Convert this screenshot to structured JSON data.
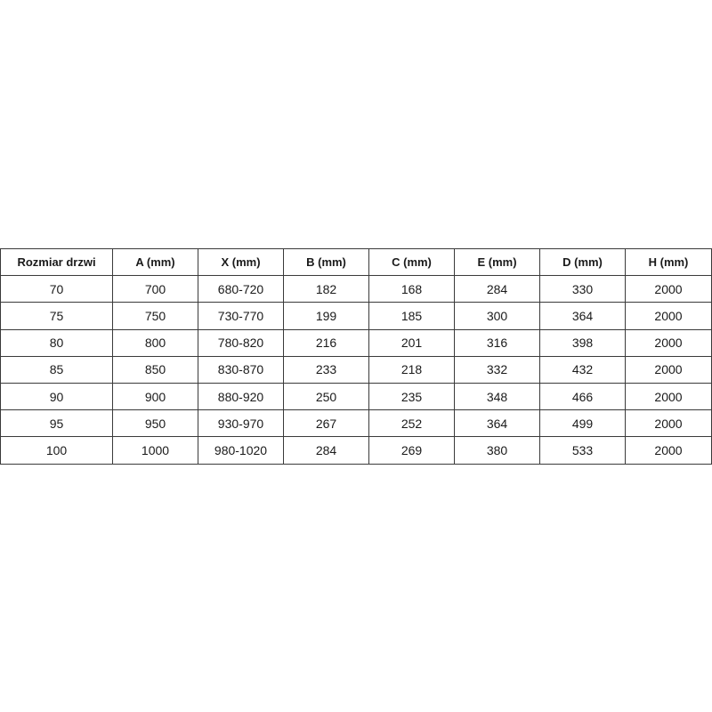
{
  "table": {
    "headers": [
      "Rozmiar drzwi",
      "A (mm)",
      "X (mm)",
      "B (mm)",
      "C (mm)",
      "E (mm)",
      "D (mm)",
      "H (mm)"
    ],
    "rows": [
      [
        "70",
        "700",
        "680-720",
        "182",
        "168",
        "284",
        "330",
        "2000"
      ],
      [
        "75",
        "750",
        "730-770",
        "199",
        "185",
        "300",
        "364",
        "2000"
      ],
      [
        "80",
        "800",
        "780-820",
        "216",
        "201",
        "316",
        "398",
        "2000"
      ],
      [
        "85",
        "850",
        "830-870",
        "233",
        "218",
        "332",
        "432",
        "2000"
      ],
      [
        "90",
        "900",
        "880-920",
        "250",
        "235",
        "348",
        "466",
        "2000"
      ],
      [
        "95",
        "950",
        "930-970",
        "267",
        "252",
        "364",
        "499",
        "2000"
      ],
      [
        "100",
        "1000",
        "980-1020",
        "284",
        "269",
        "380",
        "533",
        "2000"
      ]
    ]
  }
}
